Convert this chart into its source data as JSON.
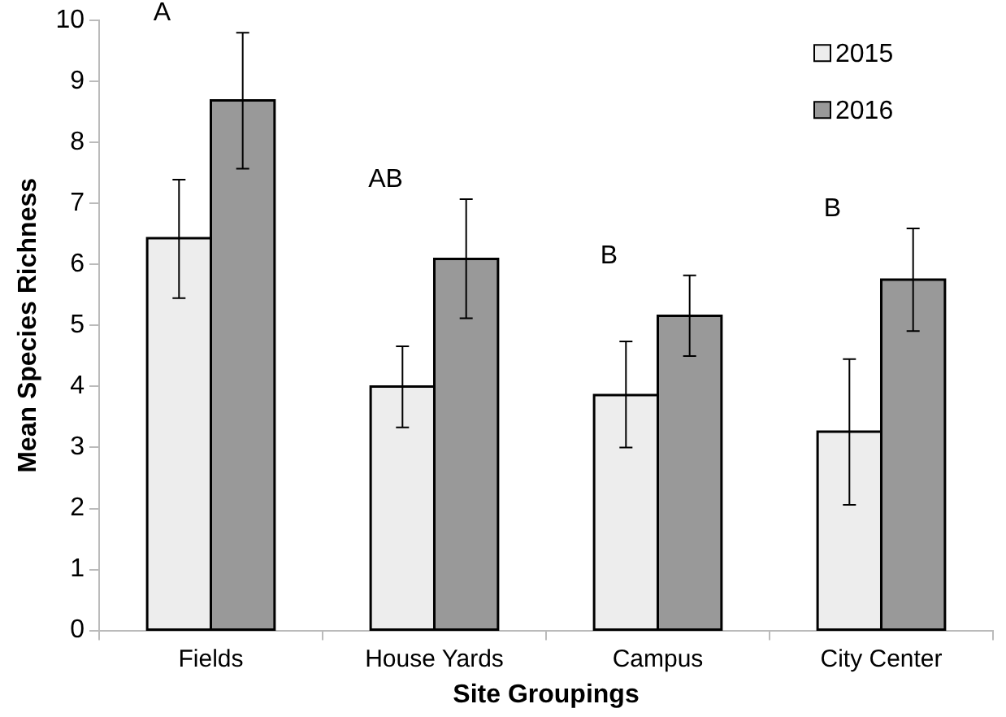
{
  "chart_data": {
    "type": "bar",
    "xlabel": "Site Groupings",
    "ylabel": "Mean Species Richness",
    "categories": [
      "Fields",
      "House Yards",
      "Campus",
      "City Center"
    ],
    "series": [
      {
        "name": "2015",
        "color": "#ededed",
        "values": [
          6.43,
          4.0,
          3.86,
          3.26
        ],
        "errors": [
          [
            5.45,
            7.39
          ],
          [
            3.33,
            4.66
          ],
          [
            3.0,
            4.74
          ],
          [
            2.06,
            4.45
          ]
        ]
      },
      {
        "name": "2016",
        "color": "#999999",
        "values": [
          8.69,
          6.09,
          5.16,
          5.75
        ],
        "errors": [
          [
            7.57,
            9.8
          ],
          [
            5.12,
            7.07
          ],
          [
            4.5,
            5.82
          ],
          [
            4.91,
            6.59
          ]
        ]
      }
    ],
    "ylim": [
      0,
      10
    ],
    "yticks": [
      0,
      1,
      2,
      3,
      4,
      5,
      6,
      7,
      8,
      9,
      10
    ],
    "grid": false,
    "legend": "top right",
    "annotations": [
      "A",
      "AB",
      "B",
      "B"
    ]
  }
}
